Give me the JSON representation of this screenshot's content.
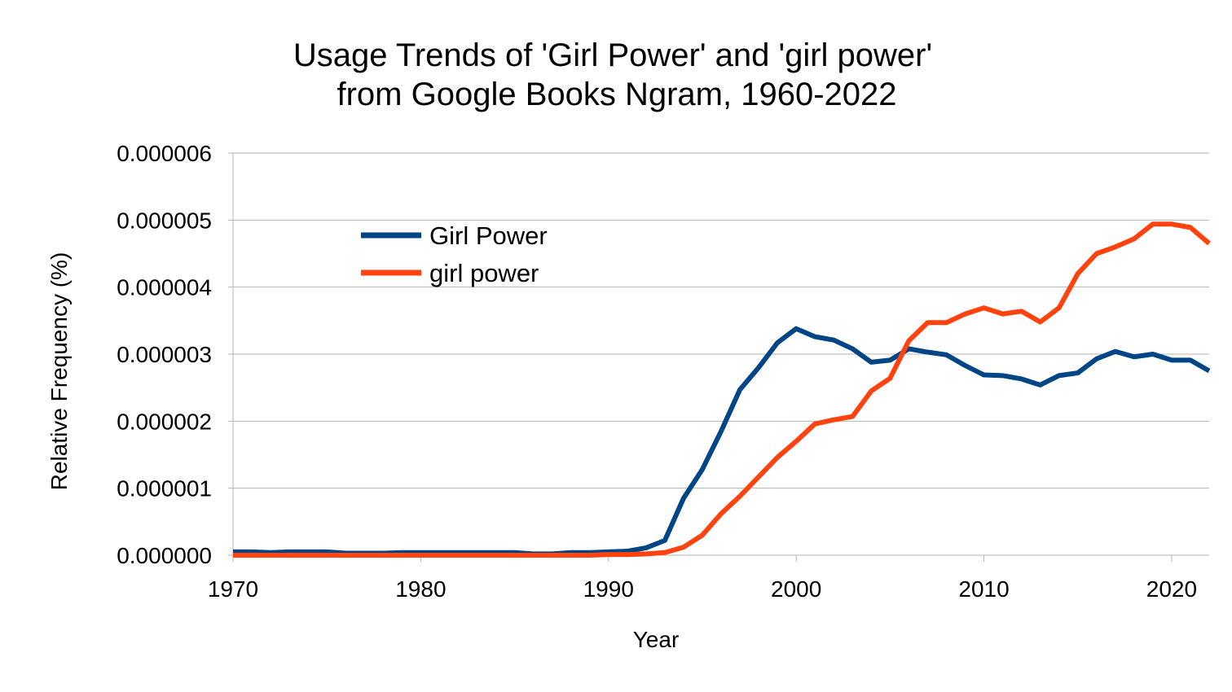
{
  "chart_data": {
    "type": "line",
    "title": [
      "Usage Trends of 'Girl Power' and 'girl power'",
      "from Google Books Ngram, 1960-2022"
    ],
    "xlabel": "Year",
    "ylabel": "Relative Frequency (%)",
    "xlim": [
      1970,
      2022
    ],
    "ylim": [
      0,
      6e-06
    ],
    "x_ticks": [
      1970,
      1980,
      1990,
      2000,
      2010,
      2020
    ],
    "y_ticks": [
      "0.000000",
      "0.000001",
      "0.000002",
      "0.000003",
      "0.000004",
      "0.000005",
      "0.000006"
    ],
    "y_tick_values": [
      0,
      1e-06,
      2e-06,
      3e-06,
      4e-06,
      5e-06,
      6e-06
    ],
    "grid": "horizontal",
    "legend_position": "upper-left-inside",
    "x": [
      1970,
      1971,
      1972,
      1973,
      1974,
      1975,
      1976,
      1977,
      1978,
      1979,
      1980,
      1981,
      1982,
      1983,
      1984,
      1985,
      1986,
      1987,
      1988,
      1989,
      1990,
      1991,
      1992,
      1993,
      1994,
      1995,
      1996,
      1997,
      1998,
      1999,
      2000,
      2001,
      2002,
      2003,
      2004,
      2005,
      2006,
      2007,
      2008,
      2009,
      2010,
      2011,
      2012,
      2013,
      2014,
      2015,
      2016,
      2017,
      2018,
      2019,
      2020,
      2021,
      2022
    ],
    "series": [
      {
        "name": "Girl Power",
        "color": "#004586",
        "values": [
          5e-08,
          5e-08,
          4e-08,
          5e-08,
          5e-08,
          5e-08,
          3e-08,
          3e-08,
          3e-08,
          4e-08,
          4e-08,
          4e-08,
          4e-08,
          4e-08,
          4e-08,
          4e-08,
          2e-08,
          2e-08,
          4e-08,
          4e-08,
          5e-08,
          6e-08,
          1.1e-07,
          2.2e-07,
          8.5e-07,
          1.28e-06,
          1.85e-06,
          2.47e-06,
          2.8e-06,
          3.17e-06,
          3.38e-06,
          3.26e-06,
          3.21e-06,
          3.08e-06,
          2.88e-06,
          2.91e-06,
          3.08e-06,
          3.03e-06,
          2.99e-06,
          2.83e-06,
          2.69e-06,
          2.68e-06,
          2.63e-06,
          2.54e-06,
          2.68e-06,
          2.72e-06,
          2.93e-06,
          3.04e-06,
          2.96e-06,
          3e-06,
          2.91e-06,
          2.91e-06,
          2.75e-06
        ]
      },
      {
        "name": "girl power",
        "color": "#ff420e",
        "values": [
          0,
          0,
          0,
          0,
          0,
          0,
          0,
          0,
          0,
          0,
          0,
          0,
          0,
          0,
          0,
          0,
          0,
          0,
          0,
          0,
          1e-08,
          1e-08,
          2e-08,
          4e-08,
          1.2e-07,
          3e-07,
          6.2e-07,
          8.8e-07,
          1.17e-06,
          1.46e-06,
          1.7e-06,
          1.96e-06,
          2.02e-06,
          2.07e-06,
          2.45e-06,
          2.64e-06,
          3.2e-06,
          3.47e-06,
          3.47e-06,
          3.6e-06,
          3.69e-06,
          3.6e-06,
          3.64e-06,
          3.48e-06,
          3.69e-06,
          4.2e-06,
          4.5e-06,
          4.6e-06,
          4.72e-06,
          4.94e-06,
          4.94e-06,
          4.89e-06,
          4.65e-06
        ]
      }
    ]
  }
}
